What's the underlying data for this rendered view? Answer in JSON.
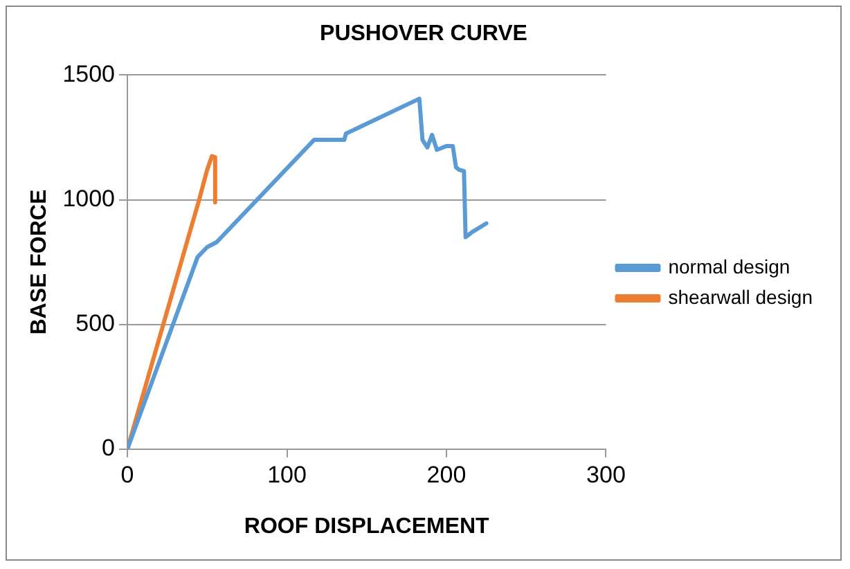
{
  "chart_data": {
    "type": "line",
    "title": "PUSHOVER CURVE",
    "xlabel": "ROOF DISPLACEMENT",
    "ylabel": "BASE FORCE",
    "xlim": [
      0,
      300
    ],
    "xticks": [
      0,
      100,
      200,
      300
    ],
    "ylim": [
      0,
      1500
    ],
    "yticks": [
      0,
      500,
      1000,
      1500
    ],
    "grid": "y",
    "legend": "right",
    "marker": "none",
    "line_style": "solid",
    "series": [
      {
        "name": "normal design",
        "color": "#5b9bd5",
        "x": [
          0,
          44,
          50,
          56,
          117,
          136,
          137,
          183,
          185,
          188,
          191,
          194,
          200,
          204,
          206,
          208,
          211,
          212,
          216,
          225
        ],
        "values": [
          0,
          770,
          810,
          830,
          1240,
          1240,
          1265,
          1405,
          1240,
          1210,
          1260,
          1200,
          1215,
          1215,
          1130,
          1120,
          1115,
          850,
          870,
          905
        ]
      },
      {
        "name": "shearwall design",
        "color": "#ed7d31",
        "x": [
          0,
          45,
          50,
          53,
          55,
          55
        ],
        "values": [
          0,
          1000,
          1120,
          1175,
          1170,
          990
        ]
      }
    ]
  }
}
